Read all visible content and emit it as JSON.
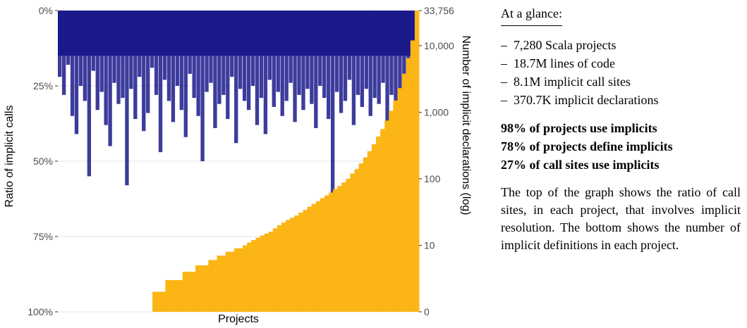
{
  "chart_data": {
    "type": "bar",
    "xlabel": "Projects",
    "ylabel_left": "Ratio of implicit calls",
    "ylabel_right": "Number of implicit declarations (log)",
    "left_axis": {
      "scale": "linear",
      "direction": "top-to-bottom",
      "ylim": [
        0,
        100
      ],
      "ticks": [
        0,
        25,
        50,
        75,
        100
      ],
      "tick_labels": [
        "0%",
        "25%",
        "50%",
        "75%",
        "100%"
      ]
    },
    "right_axis": {
      "scale": "log",
      "ylim": [
        1,
        33756
      ],
      "ticks": [
        1,
        10,
        100,
        1000,
        10000,
        33756
      ],
      "tick_labels": [
        "0",
        "10",
        "100",
        "1,000",
        "10,000",
        "33,756"
      ]
    },
    "project_count": 7280,
    "series": [
      {
        "key": "call_ratio",
        "color": "#1a1a8c",
        "description_values": "Per-project ratio of implicit call sites (percent, drawn downward from top), typical 15–40%, outliers to ~63%",
        "sampled_values": [
          22,
          28,
          18,
          35,
          41,
          25,
          30,
          55,
          20,
          33,
          27,
          38,
          45,
          24,
          31,
          29,
          58,
          26,
          36,
          22,
          40,
          34,
          19,
          28,
          47,
          23,
          30,
          37,
          25,
          33,
          42,
          21,
          29,
          35,
          50,
          27,
          24,
          39,
          31,
          28,
          36,
          22,
          44,
          26,
          30,
          33,
          25,
          38,
          29,
          41,
          23,
          32,
          27,
          35,
          30,
          24,
          37,
          28,
          33,
          26,
          31,
          39,
          25,
          29,
          36,
          62,
          27,
          34,
          30,
          23,
          38,
          28,
          32,
          26,
          35,
          29,
          31,
          24,
          37,
          28,
          33,
          27,
          30,
          25,
          22,
          20
        ]
      },
      {
        "key": "declarations",
        "color": "#fbb515",
        "description_values": "Per-project number of implicit declarations (log scale), sorted ascending; zero for first ~20% of projects, rising to 33,756",
        "sampled_values": [
          0,
          0,
          0,
          0,
          0,
          0,
          0,
          0,
          0,
          0,
          0,
          0,
          0,
          0,
          0,
          0,
          0,
          0,
          1,
          1,
          1,
          1,
          2,
          2,
          2,
          3,
          3,
          3,
          3,
          4,
          4,
          4,
          5,
          5,
          5,
          6,
          6,
          7,
          7,
          8,
          8,
          9,
          9,
          10,
          11,
          12,
          13,
          14,
          15,
          16,
          18,
          20,
          22,
          24,
          26,
          28,
          31,
          34,
          38,
          42,
          46,
          51,
          56,
          62,
          70,
          78,
          88,
          100,
          120,
          140,
          170,
          210,
          260,
          330,
          430,
          560,
          750,
          1050,
          1500,
          2300,
          3800,
          6500,
          12000,
          33756
        ]
      }
    ],
    "annotation_outline": "Right side panel summarising data"
  },
  "panel": {
    "heading": "At a glance:",
    "stats": [
      "7,280 Scala projects",
      "18.7M lines of code",
      "8.1M implicit call sites",
      "370.7K implicit declarations"
    ],
    "dash": "–",
    "highlights": [
      "98% of projects use implicits",
      "78% of projects define implicits",
      "27% of call sites use implicits"
    ],
    "description": "The top of the graph shows the ratio of call sites, in each project, that involves implicit resolution. The bottom shows the number of implicit definitions in each project."
  }
}
